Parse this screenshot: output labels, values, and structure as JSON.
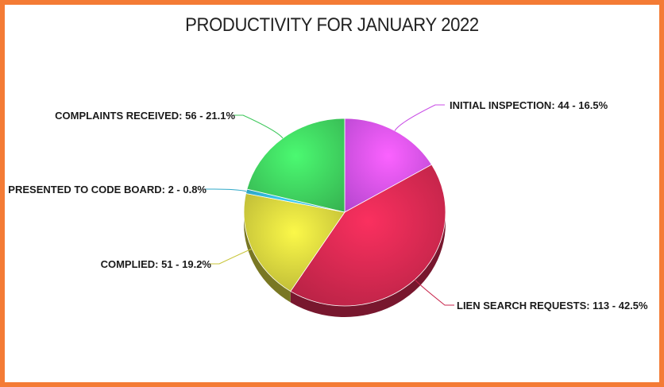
{
  "chart_data": {
    "type": "pie",
    "title": "PRODUCTIVITY FOR JANUARY 2022",
    "slices": [
      {
        "name": "INITIAL INSPECTION",
        "value": 44,
        "percent": 16.5,
        "label": "INITIAL INSPECTION: 44 - 16.5%",
        "color": "#c94ee6"
      },
      {
        "name": "LIEN SEARCH REQUESTS",
        "value": 113,
        "percent": 42.5,
        "label": "LIEN SEARCH REQUESTS: 113 - 42.5%",
        "color": "#c8264c"
      },
      {
        "name": "COMPLIED",
        "value": 51,
        "percent": 19.2,
        "label": "COMPLIED: 51 - 19.2%",
        "color": "#c9c63a"
      },
      {
        "name": "PRESENTED TO CODE BOARD",
        "value": 2,
        "percent": 0.8,
        "label": "PRESENTED TO CODE BOARD: 2 - 0.8%",
        "color": "#2fa8c8"
      },
      {
        "name": "COMPLAINTS RECEIVED",
        "value": 56,
        "percent": 21.1,
        "label": "COMPLAINTS RECEIVED: 56 - 21.1%",
        "color": "#3cc75a"
      }
    ]
  },
  "colors": {
    "border": "#f47b35"
  }
}
